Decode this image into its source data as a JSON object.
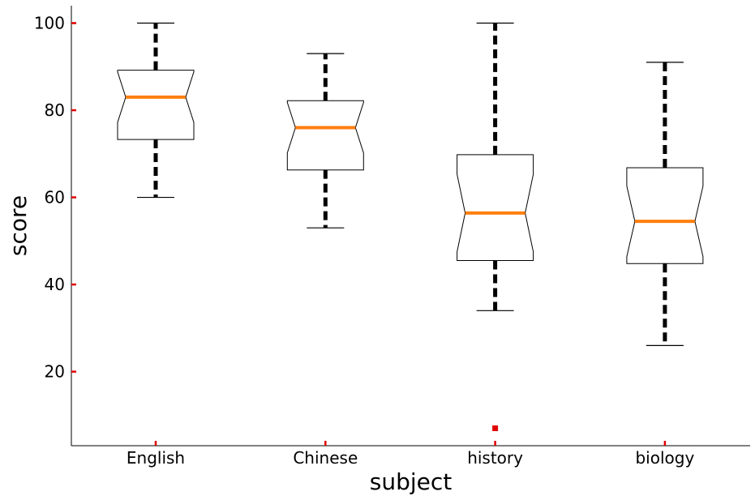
{
  "chart_data": {
    "type": "boxplot",
    "title": "",
    "xlabel": "subject",
    "ylabel": "score",
    "ylim": [
      3,
      104
    ],
    "yticks": [
      20,
      40,
      60,
      80,
      100
    ],
    "notched": true,
    "grid": false,
    "categories": [
      "English",
      "Chinese",
      "history",
      "biology"
    ],
    "boxes": [
      {
        "name": "English",
        "whisker_low": 60,
        "q1": 73.3,
        "median": 83,
        "q3": 89.2,
        "whisker_high": 100,
        "notch_low": 77.2,
        "notch_high": 88.8,
        "outliers": []
      },
      {
        "name": "Chinese",
        "whisker_low": 53,
        "q1": 66.3,
        "median": 76,
        "q3": 82.2,
        "whisker_high": 93,
        "notch_low": 70.2,
        "notch_high": 81.8,
        "outliers": []
      },
      {
        "name": "history",
        "whisker_low": 34,
        "q1": 45.5,
        "median": 56.4,
        "q3": 69.8,
        "whisker_high": 100,
        "notch_low": 47.5,
        "notch_high": 65.3,
        "outliers": [
          7
        ]
      },
      {
        "name": "biology",
        "whisker_low": 26,
        "q1": 44.8,
        "median": 54.5,
        "q3": 66.8,
        "whisker_high": 91,
        "notch_low": 46.4,
        "notch_high": 62.6,
        "outliers": []
      }
    ],
    "colors": {
      "median": "#ff7f0e",
      "box_edge": "#000000",
      "whisker": "#000000",
      "outlier": "#e00000",
      "tick": "#e00000",
      "axis": "#000000"
    }
  }
}
